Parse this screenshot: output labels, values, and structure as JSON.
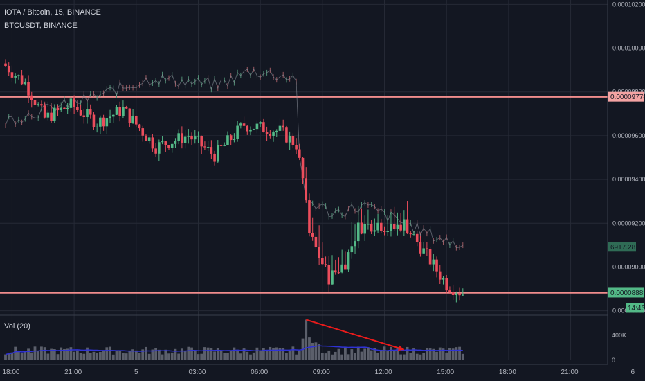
{
  "legend": {
    "main": "IOTA / Bitcoin, 15, BINANCE",
    "overlay": "BTCUSDT, BINANCE",
    "volume": "Vol (20)"
  },
  "colors": {
    "background": "#131722",
    "grid": "#262a36",
    "up": "#53b987",
    "down": "#eb4d5c",
    "overlay": "#8a8f99",
    "hline": "#f08c8c",
    "vol_ma": "#2f32d6",
    "arrow": "#e81b1b",
    "axis_text": "#b2b5be"
  },
  "chart_data": [
    {
      "type": "candlestick",
      "title": "IOTA / Bitcoin, 15, BINANCE",
      "y_axis": {
        "range": [
          8.78e-05,
          0.0001022
        ],
        "ticks": [
          "0.00010200",
          "0.00010000",
          "0.00009800",
          "0.00009600",
          "0.00009400",
          "0.00009200",
          "0.00009000",
          "0.00008800"
        ],
        "tick_values": [
          0.000102,
          0.0001,
          9.8e-05,
          9.6e-05,
          9.4e-05,
          9.2e-05,
          9e-05,
          8.8e-05
        ]
      },
      "x_axis": {
        "ticks": [
          "18:00",
          "21:00",
          "5",
          "03:00",
          "06:00",
          "09:00",
          "12:00",
          "15:00",
          "18:00",
          "21:00",
          "6"
        ]
      },
      "horizontal_lines": [
        {
          "value": 9.778e-05,
          "label": "0.00009778"
        },
        {
          "value": 8.883e-05,
          "label": "0.00008883"
        }
      ],
      "last_price_label": "0.00008883",
      "countdown_label": "14:46",
      "grid": true,
      "series_anchors": [
        {
          "t": 0,
          "close": 9.92e-05
        },
        {
          "t": 6,
          "close": 9.84e-05
        },
        {
          "t": 12,
          "close": 9.68e-05
        },
        {
          "t": 20,
          "close": 9.74e-05
        },
        {
          "t": 28,
          "close": 9.66e-05
        },
        {
          "t": 36,
          "close": 9.72e-05
        },
        {
          "t": 46,
          "close": 9.55e-05
        },
        {
          "t": 56,
          "close": 9.6e-05
        },
        {
          "t": 64,
          "close": 9.51e-05
        },
        {
          "t": 73,
          "close": 9.65e-05
        },
        {
          "t": 84,
          "close": 9.62e-05
        },
        {
          "t": 89,
          "close": 9.56e-05
        },
        {
          "t": 91,
          "close": 9.4e-05
        },
        {
          "t": 93,
          "close": 9.15e-05
        },
        {
          "t": 99,
          "close": 8.95e-05
        },
        {
          "t": 104,
          "close": 9.02e-05
        },
        {
          "t": 108,
          "close": 9.18e-05
        },
        {
          "t": 114,
          "close": 9.2e-05
        },
        {
          "t": 118,
          "close": 9.17e-05
        },
        {
          "t": 122,
          "close": 9.2e-05
        },
        {
          "t": 130,
          "close": 9.03e-05
        },
        {
          "t": 135,
          "close": 8.92e-05
        },
        {
          "t": 140,
          "close": 8.88e-05
        }
      ]
    },
    {
      "type": "line",
      "series": [
        {
          "name": "BTCUSDT, BINANCE"
        }
      ],
      "axis_label": "6917.28",
      "series_anchors": [
        {
          "t": 0,
          "value": 6935
        },
        {
          "t": 8,
          "value": 6936
        },
        {
          "t": 25,
          "value": 6938
        },
        {
          "t": 45,
          "value": 6941
        },
        {
          "t": 65,
          "value": 6940
        },
        {
          "t": 75,
          "value": 6942
        },
        {
          "t": 89,
          "value": 6941
        },
        {
          "t": 90,
          "value": 6929
        },
        {
          "t": 92,
          "value": 6924
        },
        {
          "t": 100,
          "value": 6922
        },
        {
          "t": 110,
          "value": 6923
        },
        {
          "t": 120,
          "value": 6921
        },
        {
          "t": 130,
          "value": 6919
        },
        {
          "t": 140,
          "value": 6917.28
        }
      ]
    },
    {
      "type": "bar",
      "title": "Vol (20)",
      "y_axis": {
        "range": [
          0,
          600000
        ],
        "ticks": [
          "400K",
          "0"
        ],
        "tick_values": [
          400000,
          0
        ]
      },
      "spike": {
        "t": 92,
        "value": 650000
      },
      "annotation": {
        "type": "arrow",
        "from": {
          "t": 92,
          "value": 650000
        },
        "to": {
          "t": 122,
          "value": 170000
        }
      }
    }
  ]
}
